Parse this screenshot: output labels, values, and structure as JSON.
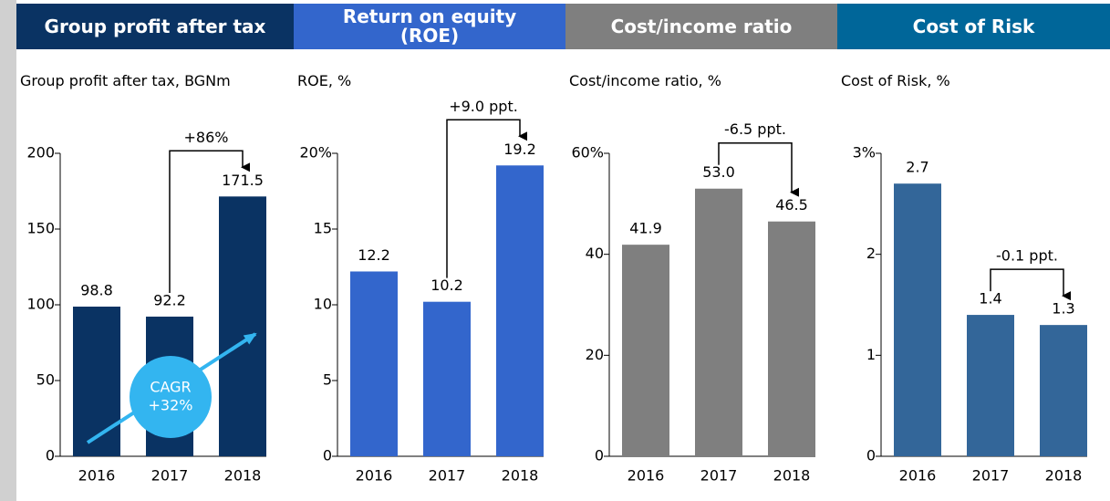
{
  "chart_data": [
    {
      "type": "bar",
      "header": "Group profit after tax",
      "header_color": "#0a3363",
      "subtitle": "Group profit after tax, BGNm",
      "categories": [
        "2016",
        "2017",
        "2018"
      ],
      "values": [
        98.8,
        92.2,
        171.5
      ],
      "value_labels": [
        "98.8",
        "92.2",
        "171.5"
      ],
      "color": "#0a3363",
      "ylim": [
        0,
        200
      ],
      "yticks": [
        0,
        50,
        100,
        150,
        200
      ],
      "annotation": "+86%",
      "cagr_label": [
        "CAGR",
        "+32%"
      ]
    },
    {
      "type": "bar",
      "header": "Return on equity (ROE)",
      "header_color": "#3366cc",
      "subtitle": "ROE, %",
      "categories": [
        "2016",
        "2017",
        "2018"
      ],
      "values": [
        12.2,
        10.2,
        19.2
      ],
      "value_labels": [
        "12.2",
        "10.2",
        "19.2"
      ],
      "color": "#3366cc",
      "ylim": [
        0,
        20
      ],
      "yticks": [
        0,
        5,
        10,
        15,
        {
          "value": 20,
          "label": "20%"
        }
      ],
      "annotation": "+9.0 ppt."
    },
    {
      "type": "bar",
      "header": "Cost/income ratio",
      "header_color": "#7f7f7f",
      "subtitle": "Cost/income ratio, %",
      "categories": [
        "2016",
        "2017",
        "2018"
      ],
      "values": [
        41.9,
        53.0,
        46.5
      ],
      "value_labels": [
        "41.9",
        "53.0",
        "46.5"
      ],
      "color": "#7f7f7f",
      "ylim": [
        0,
        60
      ],
      "yticks": [
        0,
        20,
        40,
        {
          "value": 60,
          "label": "60%"
        }
      ],
      "annotation": "-6.5 ppt."
    },
    {
      "type": "bar",
      "header": "Cost of Risk",
      "header_color": "#006699",
      "subtitle": "Cost of Risk, %",
      "categories": [
        "2016",
        "2017",
        "2018"
      ],
      "values": [
        2.7,
        1.4,
        1.3
      ],
      "value_labels": [
        "2.7",
        "1.4",
        "1.3"
      ],
      "color": "#336699",
      "ylim": [
        0,
        3
      ],
      "yticks": [
        0,
        1,
        2,
        {
          "value": 3,
          "label": "3%"
        }
      ],
      "annotation": "-0.1 ppt."
    }
  ]
}
